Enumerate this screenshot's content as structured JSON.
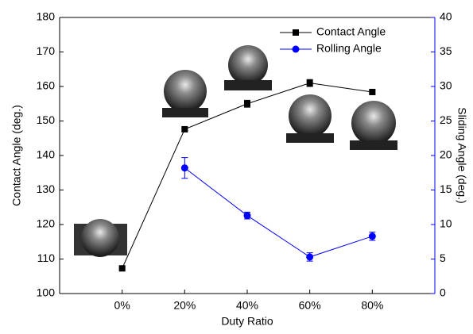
{
  "chart_data": {
    "type": "line",
    "x": [
      0,
      20,
      40,
      60,
      80
    ],
    "xlim": [
      -20,
      100
    ],
    "xticks": [
      {
        "value": 0,
        "label": "0%"
      },
      {
        "value": 20,
        "label": "20%"
      },
      {
        "value": 40,
        "label": "40%"
      },
      {
        "value": 60,
        "label": "60%"
      },
      {
        "value": 80,
        "label": "80%"
      }
    ],
    "xlabel": "Duty Ratio",
    "ylabel": "Contact Angle (deg.)",
    "y2label": "Sliding Angle (deg.)",
    "ylim": [
      100,
      180
    ],
    "yticks": [
      100,
      110,
      120,
      130,
      140,
      150,
      160,
      170,
      180
    ],
    "y2lim": [
      0,
      40
    ],
    "y2ticks": [
      0,
      5,
      10,
      15,
      20,
      25,
      30,
      35,
      40
    ],
    "y2color": "#0000ff",
    "legend": "top-right",
    "series": [
      {
        "name": "Contact Angle",
        "color": "#000000",
        "marker": "square",
        "values": [
          107.3,
          147.6,
          155,
          161,
          158.4
        ],
        "errors": [
          0.4,
          0.5,
          1,
          1,
          0.5
        ]
      },
      {
        "name": "Rolling Angle",
        "color": "#0000ff",
        "marker": "circle",
        "axis": "y2",
        "values": [
          null,
          18.2,
          11.3,
          5.3,
          8.3
        ],
        "errors": [
          null,
          1.5,
          0.5,
          0.6,
          0.6
        ]
      }
    ]
  }
}
